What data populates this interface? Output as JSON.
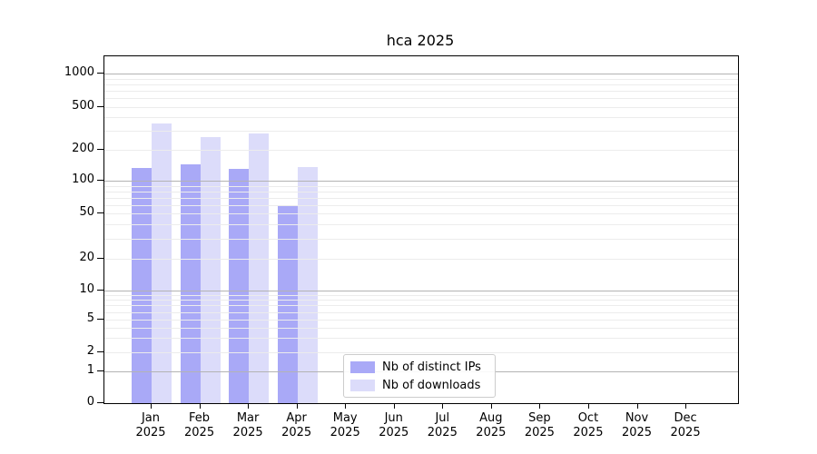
{
  "chart_data": {
    "type": "bar",
    "title": "hca 2025",
    "categories": [
      "Jan",
      "Feb",
      "Mar",
      "Apr",
      "May",
      "Jun",
      "Jul",
      "Aug",
      "Sep",
      "Oct",
      "Nov",
      "Dec"
    ],
    "x_tick_year": "2025",
    "series": [
      {
        "name": "Nb of distinct IPs",
        "color": "#a9a9f7",
        "values": [
          134,
          144,
          130,
          58,
          null,
          null,
          null,
          null,
          null,
          null,
          null,
          null
        ]
      },
      {
        "name": "Nb of downloads",
        "color": "#dcdcfa",
        "values": [
          350,
          262,
          284,
          136,
          null,
          null,
          null,
          null,
          null,
          null,
          null,
          null
        ]
      }
    ],
    "yscale": "symlog",
    "yticks": [
      0,
      1,
      2,
      5,
      10,
      20,
      50,
      100,
      200,
      500,
      1000
    ],
    "ytick_labels": [
      "0",
      "1",
      "2",
      "5",
      "10",
      "20",
      "50",
      "100",
      "200",
      "500",
      "1000"
    ],
    "ylim": [
      0,
      1400
    ],
    "xlabel": "",
    "ylabel": "",
    "grid": {
      "horizontal": true,
      "vertical": false,
      "major_color": "#b3b3b3",
      "minor_color": "#ececec",
      "grid_above_bars": true
    },
    "legend": {
      "items": [
        "Nb of distinct IPs",
        "Nb of downloads"
      ],
      "position": "lower-center-inside-axes"
    }
  }
}
